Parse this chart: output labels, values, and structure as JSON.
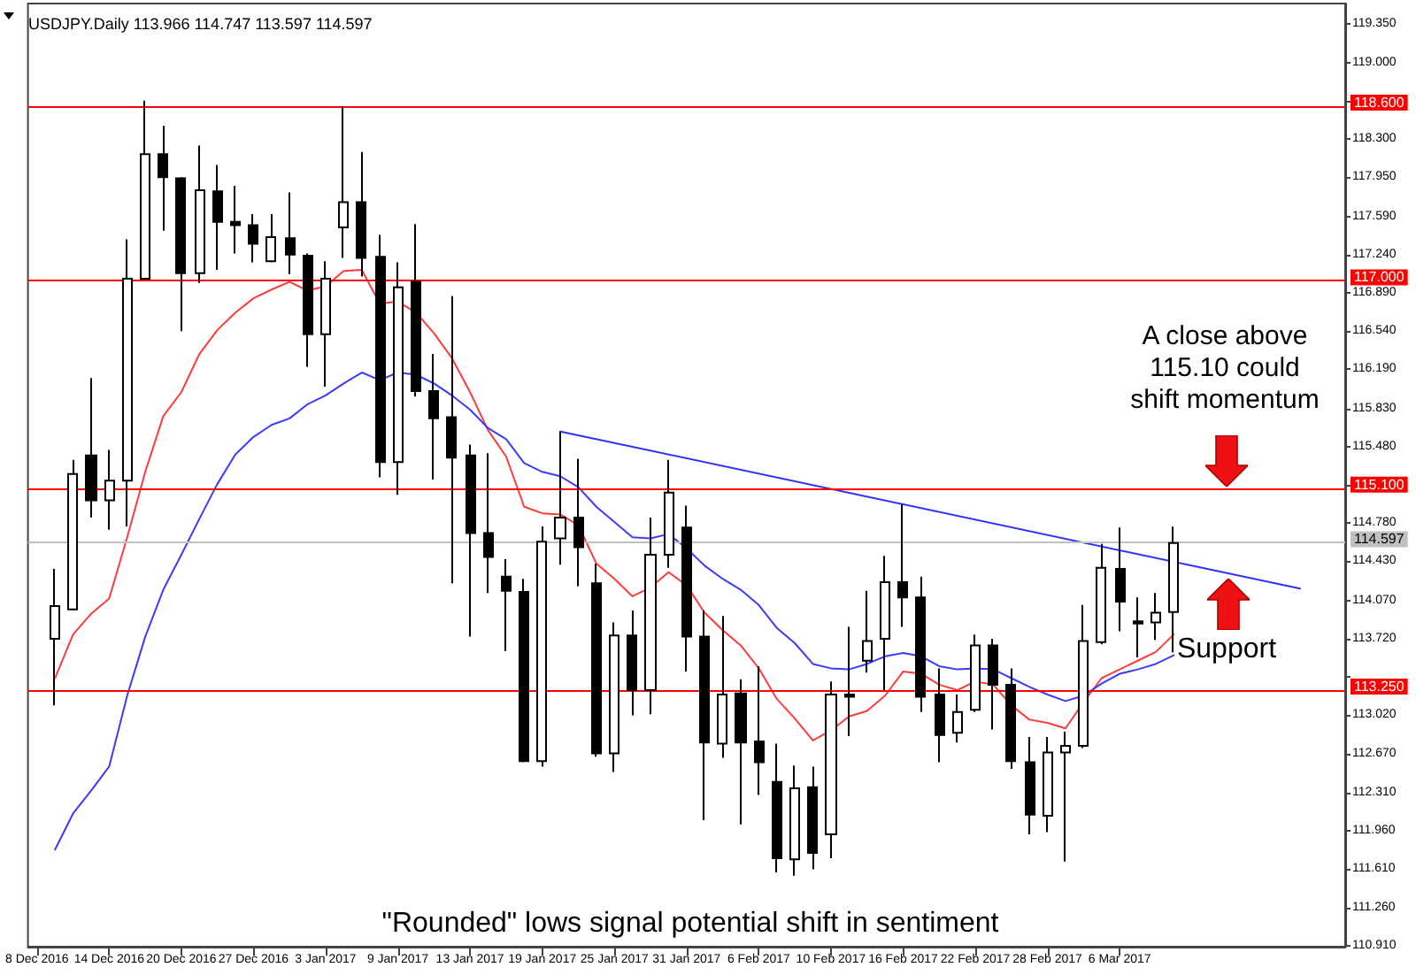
{
  "chart_data": {
    "type": "candlestick",
    "title": "USDJPY.Daily 113.966 114.747 113.597 114.597",
    "categories": [
      "8 Dec 2016",
      null,
      null,
      null,
      "14 Dec 2016",
      null,
      null,
      null,
      "20 Dec 2016",
      null,
      null,
      null,
      "27 Dec 2016",
      null,
      null,
      null,
      "3 Jan 2017",
      null,
      null,
      null,
      "9 Jan 2017",
      null,
      null,
      null,
      "13 Jan 2017",
      null,
      null,
      null,
      "19 Jan 2017",
      null,
      null,
      null,
      "25 Jan 2017",
      null,
      null,
      null,
      "31 Jan 2017",
      null,
      null,
      null,
      "6 Feb 2017",
      null,
      null,
      null,
      "10 Feb 2017",
      null,
      null,
      null,
      "16 Feb 2017",
      null,
      null,
      null,
      "22 Feb 2017",
      null,
      null,
      null,
      "28 Feb 2017",
      null,
      null,
      null,
      "6 Mar 2017",
      null,
      null,
      null,
      null,
      null,
      null,
      null,
      null,
      null,
      null,
      null,
      null
    ],
    "color": "#000000",
    "ohlc": [
      null,
      [
        113.72,
        114.36,
        113.11,
        114.02
      ],
      [
        113.99,
        115.36,
        113.98,
        115.23
      ],
      [
        115.4,
        116.11,
        114.83,
        114.99
      ],
      [
        114.99,
        115.45,
        114.72,
        115.17
      ],
      [
        115.17,
        117.38,
        114.75,
        117.02
      ],
      [
        117.02,
        118.65,
        117.01,
        118.16
      ],
      [
        118.16,
        118.42,
        117.46,
        117.95
      ],
      [
        117.94,
        117.95,
        116.54,
        117.07
      ],
      [
        117.07,
        118.24,
        116.98,
        117.83
      ],
      [
        117.82,
        118.06,
        117.1,
        117.54
      ],
      [
        117.54,
        117.87,
        117.25,
        117.51
      ],
      [
        117.51,
        117.61,
        117.17,
        117.34
      ],
      [
        117.18,
        117.61,
        117.17,
        117.4
      ],
      [
        117.39,
        117.81,
        117.06,
        117.24
      ],
      [
        117.23,
        117.25,
        116.21,
        116.51
      ],
      [
        116.51,
        117.18,
        116.03,
        117.02
      ],
      [
        117.49,
        118.6,
        117.21,
        117.72
      ],
      [
        117.72,
        118.18,
        117.04,
        117.21
      ],
      [
        117.22,
        117.42,
        115.2,
        115.34
      ],
      [
        115.34,
        117.17,
        115.04,
        116.94
      ],
      [
        116.99,
        117.52,
        115.94,
        115.99
      ],
      [
        115.99,
        116.33,
        115.18,
        115.74
      ],
      [
        115.75,
        116.86,
        114.23,
        115.38
      ],
      [
        115.4,
        115.5,
        113.74,
        114.69
      ],
      [
        114.69,
        115.42,
        114.14,
        114.47
      ],
      [
        114.29,
        114.45,
        113.61,
        114.16
      ],
      [
        114.15,
        114.27,
        112.59,
        112.6
      ],
      [
        112.6,
        114.75,
        112.55,
        114.61
      ],
      [
        114.64,
        115.62,
        114.4,
        114.83
      ],
      [
        114.83,
        115.37,
        114.2,
        114.56
      ],
      [
        114.23,
        114.41,
        112.64,
        112.67
      ],
      [
        112.67,
        113.87,
        112.5,
        113.75
      ],
      [
        113.75,
        113.98,
        113.02,
        113.25
      ],
      [
        113.25,
        114.83,
        113.03,
        114.49
      ],
      [
        114.49,
        115.36,
        114.37,
        115.06
      ],
      [
        114.74,
        114.94,
        113.42,
        113.74
      ],
      [
        113.74,
        113.98,
        112.06,
        112.77
      ],
      [
        112.76,
        113.93,
        112.63,
        113.21
      ],
      [
        113.22,
        113.35,
        112.02,
        112.77
      ],
      [
        112.78,
        113.47,
        112.29,
        112.59
      ],
      [
        112.41,
        112.76,
        111.58,
        111.71
      ],
      [
        111.7,
        112.56,
        111.55,
        112.35
      ],
      [
        112.36,
        112.55,
        111.61,
        111.76
      ],
      [
        111.93,
        113.33,
        111.71,
        113.21
      ],
      [
        113.21,
        113.83,
        112.83,
        113.19
      ],
      [
        113.52,
        114.16,
        113.41,
        113.7
      ],
      [
        113.72,
        114.48,
        113.25,
        114.24
      ],
      [
        114.24,
        114.95,
        113.83,
        114.1
      ],
      [
        114.1,
        114.29,
        113.05,
        113.19
      ],
      [
        113.21,
        113.45,
        112.59,
        112.84
      ],
      [
        112.86,
        113.21,
        112.77,
        113.05
      ],
      [
        113.07,
        113.76,
        113.05,
        113.66
      ],
      [
        113.66,
        113.72,
        112.89,
        113.3
      ],
      [
        113.3,
        113.45,
        112.53,
        112.6
      ],
      [
        112.59,
        112.82,
        111.93,
        112.11
      ],
      [
        112.1,
        112.82,
        111.95,
        112.68
      ],
      [
        112.68,
        112.87,
        111.68,
        112.74
      ],
      [
        112.74,
        114.03,
        112.72,
        113.7
      ],
      [
        113.69,
        114.59,
        113.67,
        114.37
      ],
      [
        114.36,
        114.74,
        113.79,
        114.06
      ],
      [
        113.88,
        114.1,
        113.55,
        113.86
      ],
      [
        113.87,
        114.14,
        113.71,
        113.96
      ],
      [
        113.966,
        114.747,
        113.597,
        114.597
      ],
      null,
      null,
      null,
      null,
      null,
      null,
      null,
      null,
      null
    ],
    "series": [
      {
        "type": "line",
        "color": "#ff3b3b",
        "values": [
          null,
          113.36,
          113.76,
          113.95,
          114.09,
          114.65,
          115.25,
          115.76,
          115.98,
          116.33,
          116.55,
          116.71,
          116.84,
          116.92,
          116.99,
          116.91,
          116.95,
          117.09,
          117.1,
          116.79,
          116.81,
          116.71,
          116.52,
          116.29,
          115.98,
          115.63,
          115.39,
          114.93,
          114.87,
          114.86,
          114.76,
          114.41,
          114.27,
          114.11,
          114.19,
          114.33,
          114.21,
          113.96,
          113.8,
          113.66,
          113.45,
          113.17,
          112.99,
          112.79,
          112.88,
          113.01,
          113.06,
          113.2,
          113.42,
          113.4,
          113.3,
          113.25,
          113.33,
          113.3,
          113.11,
          112.98,
          112.95,
          112.9,
          113.14,
          113.36,
          113.44,
          113.52,
          113.6,
          113.76,
          null,
          null,
          null,
          null,
          null,
          null,
          null,
          null,
          null
        ]
      },
      {
        "type": "line",
        "color": "#3b3bff",
        "values": [
          null,
          111.79,
          112.12,
          112.33,
          112.55,
          113.2,
          113.74,
          114.17,
          114.49,
          114.82,
          115.14,
          115.41,
          115.57,
          115.68,
          115.74,
          115.87,
          115.95,
          116.06,
          116.16,
          116.09,
          116.16,
          116.14,
          116.06,
          115.95,
          115.82,
          115.65,
          115.55,
          115.33,
          115.25,
          115.21,
          115.11,
          114.93,
          114.79,
          114.65,
          114.64,
          114.68,
          114.55,
          114.39,
          114.27,
          114.17,
          114.03,
          113.82,
          113.68,
          113.49,
          113.45,
          113.44,
          113.49,
          113.56,
          113.59,
          113.56,
          113.47,
          113.44,
          113.45,
          113.44,
          113.36,
          113.28,
          113.21,
          113.15,
          113.2,
          113.31,
          113.4,
          113.44,
          113.49,
          113.57,
          null,
          null,
          null,
          null,
          null,
          null,
          null,
          null,
          null
        ]
      },
      {
        "type": "line",
        "color": "#3030ff",
        "values": [
          null,
          null,
          null,
          null,
          null,
          null,
          null,
          null,
          null,
          null,
          null,
          null,
          null,
          null,
          null,
          null,
          null,
          null,
          null,
          null,
          null,
          null,
          null,
          null,
          null,
          null,
          null,
          null,
          null,
          115.62,
          null,
          null,
          null,
          null,
          null,
          null,
          null,
          null,
          null,
          null,
          null,
          null,
          null,
          null,
          null,
          null,
          null,
          null,
          null,
          null,
          null,
          null,
          null,
          null,
          null,
          null,
          null,
          null,
          null,
          null,
          null,
          null,
          null,
          null,
          null,
          null,
          null,
          null,
          null,
          null,
          114.18,
          null,
          null
        ]
      }
    ],
    "ylim": [
      110.9,
      119.54
    ],
    "yticks": [
      {
        "value": 119.35,
        "label": "119.350"
      },
      {
        "value": 119.0,
        "label": "119.000"
      },
      {
        "value": 118.65,
        "label": null
      },
      {
        "value": 118.3,
        "label": "118.300"
      },
      {
        "value": 117.95,
        "label": "117.950"
      },
      {
        "value": 117.59,
        "label": "117.590"
      },
      {
        "value": 117.24,
        "label": "117.240"
      },
      {
        "value": 116.89,
        "label": "116.890"
      },
      {
        "value": 116.54,
        "label": "116.540"
      },
      {
        "value": 116.19,
        "label": "116.190"
      },
      {
        "value": 115.83,
        "label": "115.830"
      },
      {
        "value": 115.48,
        "label": "115.480"
      },
      {
        "value": 115.13,
        "label": null
      },
      {
        "value": 114.78,
        "label": "114.780"
      },
      {
        "value": 114.43,
        "label": "114.430"
      },
      {
        "value": 114.07,
        "label": "114.070"
      },
      {
        "value": 113.72,
        "label": "113.720"
      },
      {
        "value": 113.37,
        "label": null
      },
      {
        "value": 113.02,
        "label": "113.020"
      },
      {
        "value": 112.67,
        "label": "112.670"
      },
      {
        "value": 112.31,
        "label": "112.310"
      },
      {
        "value": 111.96,
        "label": "111.960"
      },
      {
        "value": 111.61,
        "label": "111.610"
      },
      {
        "value": 111.26,
        "label": "111.260"
      },
      {
        "value": 110.91,
        "label": "110.910"
      }
    ],
    "ref_lines": [
      {
        "axis": "y",
        "value": 118.6,
        "label": "118.600",
        "color": "#ff0000"
      },
      {
        "axis": "y",
        "value": 117.0,
        "label": "117.000",
        "color": "#ff0000"
      },
      {
        "axis": "y",
        "value": 115.1,
        "label": "115.100",
        "color": "#ff0000"
      },
      {
        "axis": "y",
        "value": 113.25,
        "label": "113.250",
        "color": "#ff0000"
      },
      {
        "axis": "y",
        "value": 114.597,
        "label": "114.597",
        "color": "#c0c0c0"
      }
    ],
    "annotations": [
      "A close above\n115.10 could\nshift momentum",
      "Support",
      "\"Rounded\" lows signal potential shift in sentiment"
    ],
    "marker": "none"
  }
}
